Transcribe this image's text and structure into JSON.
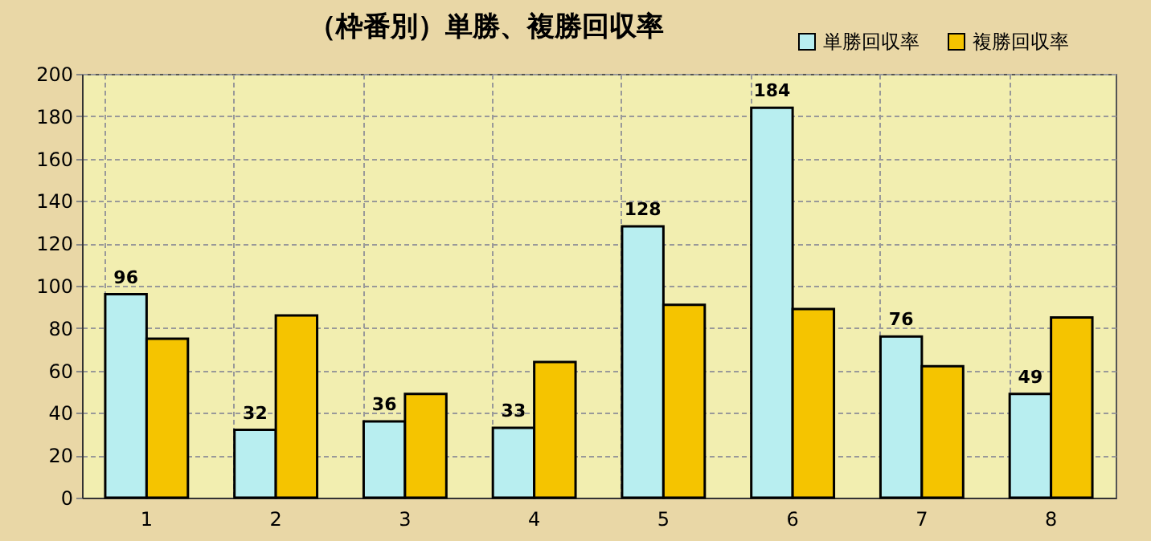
{
  "chart_data": {
    "type": "bar",
    "title": "（枠番別）単勝、複勝回収率",
    "categories": [
      "1",
      "2",
      "3",
      "4",
      "5",
      "6",
      "7",
      "8"
    ],
    "series": [
      {
        "name": "単勝回収率",
        "color": "#b8eef0",
        "values": [
          96,
          32,
          36,
          33,
          128,
          184,
          76,
          49
        ],
        "value_labels": [
          "96",
          "32",
          "36",
          "33",
          "128",
          "184",
          "76",
          "49"
        ]
      },
      {
        "name": "複勝回収率",
        "color": "#f5c400",
        "values": [
          75,
          86,
          49,
          64,
          91,
          89,
          62,
          85
        ]
      }
    ],
    "ylim": [
      0,
      200
    ],
    "yticks": [
      0,
      20,
      40,
      60,
      80,
      100,
      120,
      140,
      160,
      180,
      200
    ],
    "grid": true,
    "legend": "top right"
  }
}
